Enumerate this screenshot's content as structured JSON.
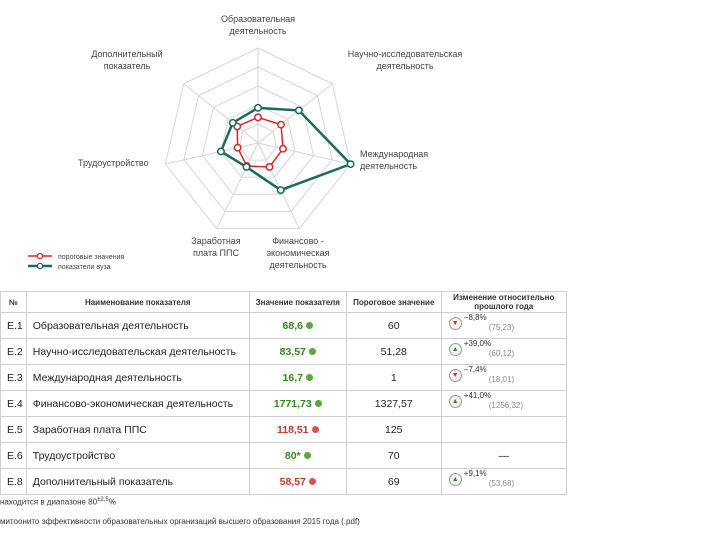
{
  "chart_data": {
    "type": "radar",
    "axes": [
      {
        "label": [
          "Образовательная",
          "деятельность"
        ]
      },
      {
        "label": [
          "Научно-исследовательская",
          "деятельность"
        ]
      },
      {
        "label": [
          "Международная",
          "деятельность"
        ]
      },
      {
        "label": [
          "Финансово -",
          "экономическая",
          "деятельность"
        ]
      },
      {
        "label": [
          "Заработная",
          "плата ППС"
        ]
      },
      {
        "label": [
          "Трудоустройство"
        ]
      },
      {
        "label": [
          "Дополнительный",
          "показатель"
        ]
      }
    ],
    "series": [
      {
        "name": "пороговые значения",
        "color": "#d62728",
        "values": [
          0.27,
          0.31,
          0.27,
          0.28,
          0.27,
          0.22,
          0.28
        ]
      },
      {
        "name": "показатели вуза",
        "color": "#1a6b5a",
        "values": [
          0.37,
          0.55,
          1.0,
          0.55,
          0.28,
          0.4,
          0.34
        ]
      }
    ],
    "rings": 5
  },
  "table": {
    "headers": [
      "№",
      "Наименование показателя",
      "Значение показателя",
      "Пороговое значение",
      "Изменение относительно прошлого года"
    ],
    "rows": [
      {
        "num": "Е.1",
        "name": "Образовательная деятельность",
        "value": "68,6",
        "status": "green",
        "threshold": "60",
        "change": {
          "dir": "down",
          "pct": "−8,8%",
          "prev": "(75,23)"
        }
      },
      {
        "num": "Е.2",
        "name": "Научно-исследовательская деятельность",
        "value": "83,57",
        "status": "green",
        "threshold": "51,28",
        "change": {
          "dir": "up",
          "pct": "+39,0%",
          "prev": "(60,12)"
        }
      },
      {
        "num": "Е.3",
        "name": "Международная деятельность",
        "value": "16,7",
        "status": "green",
        "threshold": "1",
        "change": {
          "dir": "down",
          "pct": "−7,4%",
          "prev": "(18,01)"
        }
      },
      {
        "num": "Е.4",
        "name": "Финансово-экономическая деятельность",
        "value": "1771,73",
        "status": "green",
        "threshold": "1327,57",
        "change": {
          "dir": "up",
          "pct": "+41,0%",
          "prev": "(1256,32)"
        }
      },
      {
        "num": "Е.5",
        "name": "Заработная плата ППС",
        "value": "118,51",
        "status": "red",
        "threshold": "125",
        "change": null
      },
      {
        "num": "Е.6",
        "name": "Трудоустройство",
        "value": "80*",
        "status": "green",
        "threshold": "70",
        "change": {
          "dash": "—"
        }
      },
      {
        "num": "Е.8",
        "name": "Дополнительный показатель",
        "value": "58,57",
        "status": "red",
        "threshold": "69",
        "change": {
          "dir": "up",
          "pct": "+9,1%",
          "prev": "(53,68)"
        }
      }
    ]
  },
  "footnotes": {
    "range_text": "находится в диапазоне 80",
    "range_sup": "±2,5",
    "range_suffix": "%",
    "source": "митоонито эффективности образовательных организаций высшего образования 2015 года (.pdf)"
  },
  "colors": {
    "green": "#2e8b1a",
    "red": "#c0392b"
  }
}
